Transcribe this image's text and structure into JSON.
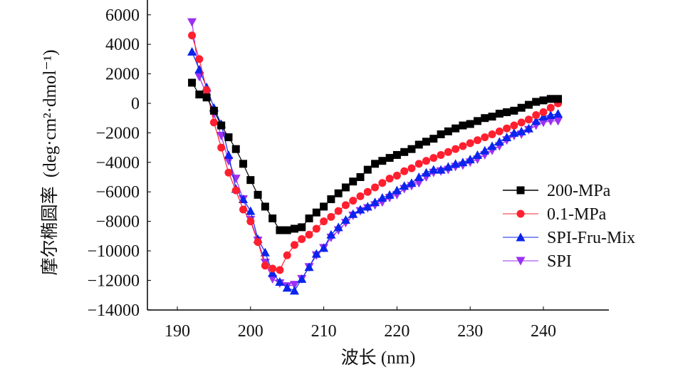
{
  "chart_data": {
    "type": "line",
    "title": "",
    "xlabel": "波长 (nm)",
    "ylabel_main": "摩尔椭圆率",
    "ylabel_unit": "(deg·cm²·dmol⁻¹)",
    "xlim": [
      185,
      245
    ],
    "ylim": [
      -14000,
      6500
    ],
    "xticks": [
      190,
      200,
      210,
      220,
      230,
      240
    ],
    "yticks": [
      6000,
      4000,
      2000,
      0,
      -2000,
      -4000,
      -6000,
      -8000,
      -10000,
      -12000,
      -14000
    ],
    "ytick_labels": [
      "6000",
      "4000",
      "2000",
      "0",
      "−2000",
      "−4000",
      "−6000",
      "−8000",
      "−10000",
      "−12000",
      "−14000"
    ],
    "grid": false,
    "legend_position": "right",
    "x": [
      192,
      193,
      194,
      195,
      196,
      197,
      198,
      199,
      200,
      201,
      202,
      203,
      204,
      205,
      206,
      207,
      208,
      209,
      210,
      211,
      212,
      213,
      214,
      215,
      216,
      217,
      218,
      219,
      220,
      221,
      222,
      223,
      224,
      225,
      226,
      227,
      228,
      229,
      230,
      231,
      232,
      233,
      234,
      235,
      236,
      237,
      238,
      239,
      240,
      241,
      242
    ],
    "series": [
      {
        "name": "200-MPa",
        "color": "#000000",
        "marker": "square",
        "values": [
          1400,
          600,
          400,
          -500,
          -1500,
          -2300,
          -3100,
          -4100,
          -5200,
          -6200,
          -7000,
          -7800,
          -8600,
          -8600,
          -8500,
          -8400,
          -7800,
          -7400,
          -7000,
          -6500,
          -6100,
          -5700,
          -5300,
          -5000,
          -4500,
          -4100,
          -3900,
          -3700,
          -3500,
          -3300,
          -3100,
          -2800,
          -2600,
          -2400,
          -2100,
          -1900,
          -1700,
          -1500,
          -1400,
          -1200,
          -1000,
          -900,
          -700,
          -600,
          -500,
          -300,
          -100,
          100,
          200,
          300,
          300
        ]
      },
      {
        "name": "0.1-MPa",
        "color": "#ff1f2f",
        "marker": "circle",
        "values": [
          4600,
          3000,
          900,
          -1300,
          -3000,
          -4700,
          -5900,
          -7200,
          -8000,
          -9400,
          -11000,
          -11200,
          -11300,
          -10300,
          -9600,
          -9200,
          -8900,
          -8500,
          -8000,
          -7700,
          -7300,
          -6900,
          -6600,
          -6300,
          -6000,
          -5700,
          -5400,
          -5100,
          -4900,
          -4600,
          -4400,
          -4100,
          -3900,
          -3700,
          -3500,
          -3300,
          -3100,
          -2900,
          -2700,
          -2500,
          -2300,
          -2100,
          -1900,
          -1700,
          -1500,
          -1300,
          -1100,
          -800,
          -600,
          -300,
          0
        ]
      },
      {
        "name": "SPI-Fru-Mix",
        "color": "#0a24ee",
        "marker": "triangle-up",
        "values": [
          3500,
          2300,
          1100,
          -300,
          -1400,
          -3500,
          -5800,
          -6500,
          -7300,
          -9200,
          -10100,
          -11500,
          -12100,
          -12500,
          -12700,
          -11900,
          -11100,
          -10200,
          -9800,
          -8900,
          -8400,
          -7900,
          -7500,
          -7200,
          -7000,
          -6700,
          -6400,
          -6200,
          -5900,
          -5600,
          -5400,
          -5000,
          -4700,
          -4500,
          -4500,
          -4300,
          -4100,
          -4000,
          -3800,
          -3500,
          -3200,
          -2900,
          -2600,
          -2300,
          -2000,
          -1900,
          -1700,
          -1200,
          -900,
          -800,
          -700
        ]
      },
      {
        "name": "SPI",
        "color": "#9b30f2",
        "marker": "triangle-down",
        "values": [
          5500,
          1800,
          600,
          -700,
          -2200,
          -3900,
          -5100,
          -6500,
          -7900,
          -9300,
          -10800,
          -11900,
          -12200,
          -12400,
          -12300,
          -11900,
          -11100,
          -10300,
          -9800,
          -9100,
          -8600,
          -8100,
          -7600,
          -7300,
          -7100,
          -6900,
          -6700,
          -6400,
          -6200,
          -5800,
          -5600,
          -5400,
          -5000,
          -4700,
          -4600,
          -4500,
          -4300,
          -4200,
          -4000,
          -3800,
          -3500,
          -3200,
          -2900,
          -2500,
          -2200,
          -2100,
          -1800,
          -1500,
          -1300,
          -1200,
          -1200
        ]
      }
    ]
  }
}
